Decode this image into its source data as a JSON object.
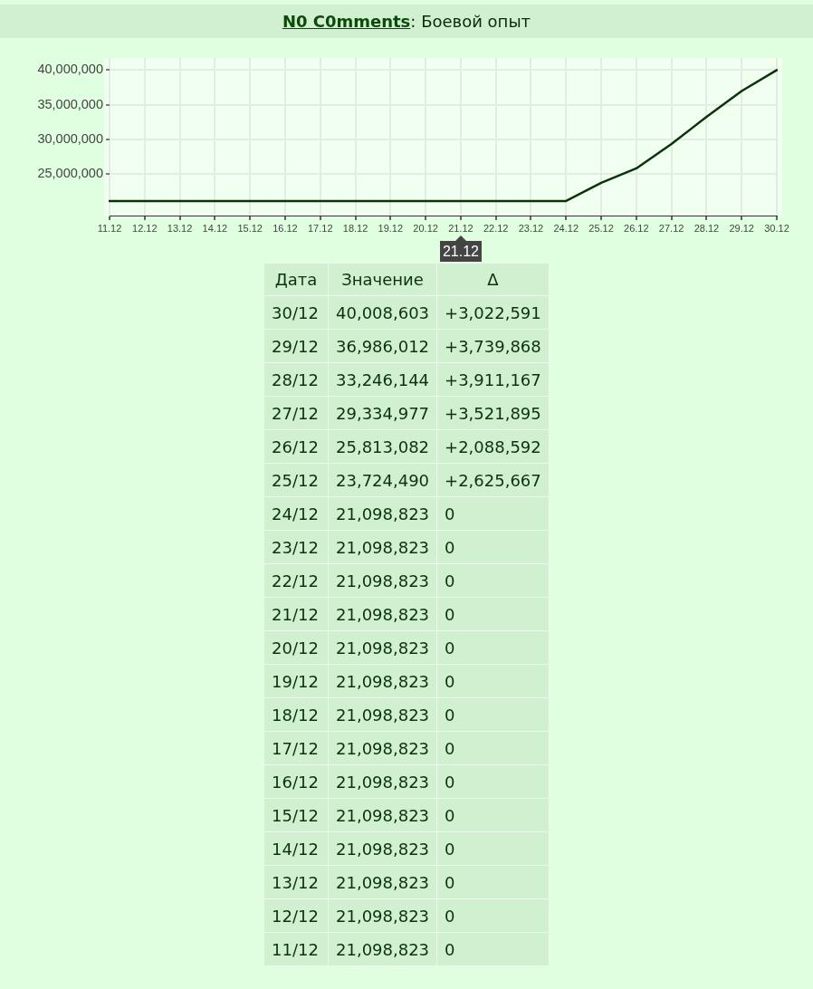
{
  "chart_data": {
    "type": "line",
    "title": "N0 C0mments: Боевой опыт",
    "categories": [
      "11.12",
      "12.12",
      "13.12",
      "14.12",
      "15.12",
      "16.12",
      "17.12",
      "18.12",
      "19.12",
      "20.12",
      "21.12",
      "22.12",
      "23.12",
      "24.12",
      "25.12",
      "26.12",
      "27.12",
      "28.12",
      "29.12",
      "30.12"
    ],
    "series": [
      {
        "color": "#0b330b",
        "values": [
          21098823,
          21098823,
          21098823,
          21098823,
          21098823,
          21098823,
          21098823,
          21098823,
          21098823,
          21098823,
          21098823,
          21098823,
          21098823,
          21098823,
          23724490,
          25813082,
          29334977,
          33246144,
          36986012,
          40008603
        ]
      }
    ],
    "ylim": [
      19000000,
      41800000
    ],
    "yticks": [
      {
        "value": 25000000,
        "label": "25,000,000"
      },
      {
        "value": 30000000,
        "label": "30,000,000"
      },
      {
        "value": 35000000,
        "label": "35,000,000"
      },
      {
        "value": 40000000,
        "label": "40,000,000"
      }
    ],
    "grid": true,
    "annotations": [
      "21.12",
      "Дата",
      "Значение",
      "Δ",
      "30/12",
      "40,008,603",
      "+3,022,591",
      "29/12",
      "36,986,012",
      "+3,739,868",
      "28/12",
      "33,246,144",
      "+3,911,167",
      "27/12",
      "29,334,977",
      "+3,521,895",
      "26/12",
      "25,813,082",
      "+2,088,592",
      "25/12",
      "23,724,490",
      "+2,625,667",
      "24/12",
      "21,098,823",
      "0",
      "23/12",
      "21,098,823",
      "0",
      "22/12",
      "21,098,823",
      "0",
      "21/12",
      "21,098,823",
      "0",
      "20/12",
      "21,098,823",
      "0",
      "19/12",
      "21,098,823",
      "0",
      "18/12",
      "21,098,823",
      "0",
      "17/12",
      "21,098,823",
      "0",
      "16/12",
      "21,098,823",
      "0",
      "15/12",
      "21,098,823",
      "0",
      "14/12",
      "21,098,823",
      "0",
      "13/12",
      "21,098,823",
      "0",
      "12/12",
      "21,098,823",
      "0",
      "11/12",
      "21,098,823",
      "0"
    ]
  }
}
